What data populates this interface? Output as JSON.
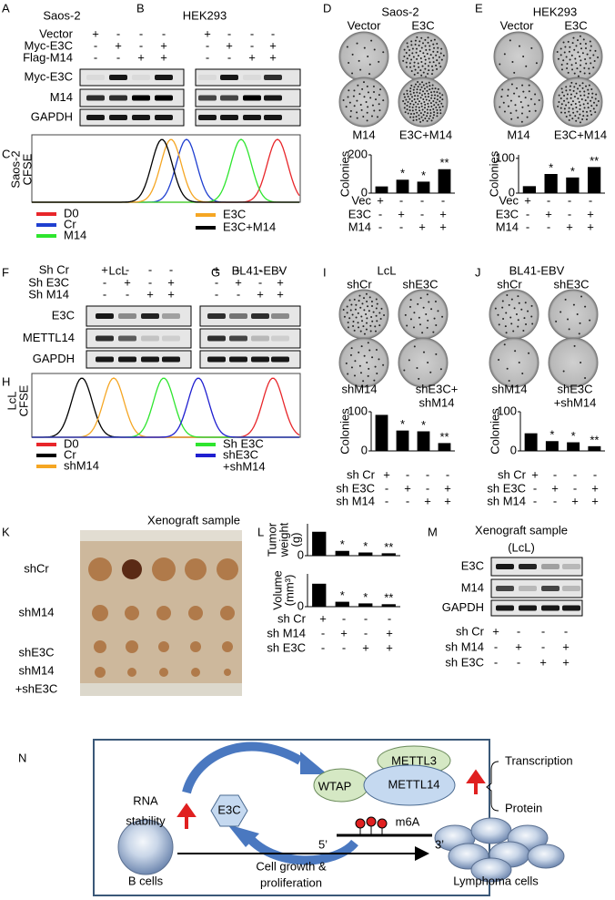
{
  "A": {
    "letter": "A",
    "title": "Saos-2",
    "rows": [
      {
        "label": "Vector",
        "signs": [
          "+",
          "-",
          "-",
          "-"
        ]
      },
      {
        "label": "Myc-E3C",
        "signs": [
          "-",
          "+",
          "-",
          "+"
        ]
      },
      {
        "label": "Flag-M14",
        "signs": [
          "-",
          "-",
          "+",
          "+"
        ]
      }
    ],
    "blots": [
      "Myc-E3C",
      "M14",
      "GAPDH"
    ]
  },
  "B": {
    "letter": "B",
    "title": "HEK293",
    "signs": [
      [
        "+",
        "-",
        "-",
        "-"
      ],
      [
        "-",
        "+",
        "-",
        "+"
      ],
      [
        "-",
        "-",
        "+",
        "+"
      ]
    ]
  },
  "C": {
    "letter": "C",
    "ylabel": [
      "Saos-2",
      "CFSE"
    ],
    "legend": [
      {
        "name": "D0",
        "color": "#e8262a"
      },
      {
        "name": "Cr",
        "color": "#1f3fd0"
      },
      {
        "name": "M14",
        "color": "#2ee52e"
      },
      {
        "name": "E3C",
        "color": "#f5a623"
      },
      {
        "name": "E3C+M14",
        "color": "#000000"
      }
    ]
  },
  "D": {
    "letter": "D",
    "title": "Saos-2",
    "dishes": [
      "Vector",
      "E3C",
      "M14",
      "E3C+M14"
    ],
    "chart": {
      "type": "bar",
      "ylabel": "Colonies",
      "ylim": [
        0,
        200
      ],
      "yticks": [
        0,
        200
      ],
      "values": [
        35,
        70,
        60,
        125
      ],
      "color": "#000000",
      "annotations": [
        "*",
        "*",
        "**"
      ]
    },
    "rows": [
      {
        "label": "Vec",
        "signs": [
          "+",
          "-",
          "-",
          "-"
        ]
      },
      {
        "label": "E3C",
        "signs": [
          "-",
          "+",
          "-",
          "+"
        ]
      },
      {
        "label": "M14",
        "signs": [
          "-",
          "-",
          "+",
          "+"
        ]
      }
    ]
  },
  "E": {
    "letter": "E",
    "title": "HEK293",
    "dishes": [
      "Vector",
      "E3C",
      "M14",
      "E3C+M14"
    ],
    "chart": {
      "type": "bar",
      "ylabel": "Colonies",
      "ylim": [
        0,
        110
      ],
      "yticks": [
        0,
        100
      ],
      "values": [
        20,
        55,
        45,
        75
      ],
      "color": "#000000",
      "annotations": [
        "*",
        "*",
        "**"
      ]
    },
    "rows": [
      {
        "label": "Vec",
        "signs": [
          "+",
          "-",
          "-",
          "-"
        ]
      },
      {
        "label": "E3C",
        "signs": [
          "-",
          "+",
          "-",
          "+"
        ]
      },
      {
        "label": "M14",
        "signs": [
          "-",
          "-",
          "+",
          "+"
        ]
      }
    ]
  },
  "F": {
    "letter": "F",
    "title": "LcL",
    "rows": [
      {
        "label": "Sh Cr",
        "signs": [
          "+",
          "-",
          "-",
          "-"
        ]
      },
      {
        "label": "Sh E3C",
        "signs": [
          "-",
          "+",
          "-",
          "+"
        ]
      },
      {
        "label": "Sh M14",
        "signs": [
          "-",
          "-",
          "+",
          "+"
        ]
      }
    ],
    "blots": [
      "E3C",
      "METTL14",
      "GAPDH"
    ]
  },
  "G": {
    "letter": "G",
    "title": "BL41-EBV",
    "signs": [
      [
        "+",
        "-",
        "-",
        "-"
      ],
      [
        "-",
        "+",
        "-",
        "+"
      ],
      [
        "-",
        "-",
        "+",
        "+"
      ]
    ]
  },
  "H": {
    "letter": "H",
    "ylabel": [
      "LcL",
      "CFSE"
    ],
    "legend": [
      {
        "name": "D0",
        "color": "#e8262a"
      },
      {
        "name": "Cr",
        "color": "#000000"
      },
      {
        "name": "shM14",
        "color": "#f5a623"
      },
      {
        "name": "Sh E3C",
        "color": "#2ee52e"
      },
      {
        "name": [
          "shE3C",
          "+shM14"
        ],
        "color": "#1f1fd0"
      }
    ]
  },
  "I": {
    "letter": "I",
    "title": "LcL",
    "dishes": [
      "shCr",
      "shE3C",
      "shM14",
      [
        "shE3C+",
        "shM14"
      ]
    ],
    "chart": {
      "type": "bar",
      "ylabel": "Colonies",
      "ylim": [
        0,
        100
      ],
      "yticks": [
        0,
        100
      ],
      "values": [
        92,
        52,
        50,
        20
      ],
      "color": "#000000",
      "annotations": [
        "*",
        "*",
        "**"
      ]
    },
    "rows": [
      {
        "label": "sh Cr",
        "signs": [
          "+",
          "-",
          "-",
          "-"
        ]
      },
      {
        "label": "sh E3C",
        "signs": [
          "-",
          "+",
          "-",
          "+"
        ]
      },
      {
        "label": "sh M14",
        "signs": [
          "-",
          "-",
          "+",
          "+"
        ]
      }
    ]
  },
  "J": {
    "letter": "J",
    "title": "BL41-EBV",
    "dishes": [
      "shCr",
      "shE3C",
      "shM14",
      [
        "shE3C",
        "+shM14"
      ]
    ],
    "chart": {
      "type": "bar",
      "ylabel": "Colonies",
      "ylim": [
        0,
        100
      ],
      "yticks": [
        0,
        100
      ],
      "values": [
        45,
        25,
        22,
        12
      ],
      "color": "#000000",
      "annotations": [
        "*",
        "*",
        "**"
      ]
    },
    "rows": [
      {
        "label": "sh Cr",
        "signs": [
          "+",
          "-",
          "-",
          "-"
        ]
      },
      {
        "label": "sh E3C",
        "signs": [
          "-",
          "+",
          "-",
          "+"
        ]
      },
      {
        "label": "sh M14",
        "signs": [
          "-",
          "-",
          "+",
          "+"
        ]
      }
    ]
  },
  "K": {
    "letter": "K",
    "title": "Xenograft sample",
    "rows": [
      "shCr",
      "shM14",
      "shE3C",
      [
        "shM14",
        "+shE3C"
      ]
    ]
  },
  "L": {
    "letter": "L",
    "charts": [
      {
        "type": "bar",
        "ylabel": [
          "Tumor",
          "weight",
          "(g)"
        ],
        "ylim": [
          0,
          2
        ],
        "yticks": [
          0
        ],
        "values": [
          1.5,
          0.3,
          0.2,
          0.15
        ],
        "color": "#000000",
        "annotations": [
          "*",
          "*",
          "**"
        ]
      },
      {
        "type": "bar",
        "ylabel": [
          "Volume",
          "(mm³)"
        ],
        "ylim": [
          0,
          2000
        ],
        "yticks": [
          0
        ],
        "values": [
          1400,
          300,
          200,
          150
        ],
        "color": "#000000",
        "annotations": [
          "*",
          "*",
          "**"
        ]
      }
    ],
    "rows": [
      {
        "label": "sh Cr",
        "signs": [
          "+",
          "-",
          "-",
          "-"
        ]
      },
      {
        "label": "sh M14",
        "signs": [
          "-",
          "+",
          "-",
          "+"
        ]
      },
      {
        "label": "sh E3C",
        "signs": [
          "-",
          "-",
          "+",
          "+"
        ]
      }
    ]
  },
  "M": {
    "letter": "M",
    "title": [
      "Xenograft sample",
      "(LcL)"
    ],
    "blots": [
      "E3C",
      "M14",
      "GAPDH"
    ],
    "rows": [
      {
        "label": "sh Cr",
        "signs": [
          "+",
          "-",
          "-",
          "-"
        ]
      },
      {
        "label": "sh M14",
        "signs": [
          "-",
          "+",
          "-",
          "+"
        ]
      },
      {
        "label": "sh E3C",
        "signs": [
          "-",
          "-",
          "+",
          "+"
        ]
      }
    ]
  },
  "N": {
    "letter": "N",
    "mettl3": "METTL3",
    "wtap": "WTAP",
    "mettl14": "METTL14",
    "transcription": "Transcription",
    "protein": "Protein",
    "rna_stability": [
      "RNA",
      "stability"
    ],
    "e3c": "E3C",
    "m6a": "m6A",
    "five": "5’",
    "three": "3’",
    "b_cells": "B cells",
    "process": [
      "Cell growth &",
      "proliferation"
    ],
    "lymphoma": "Lymphoma cells"
  }
}
